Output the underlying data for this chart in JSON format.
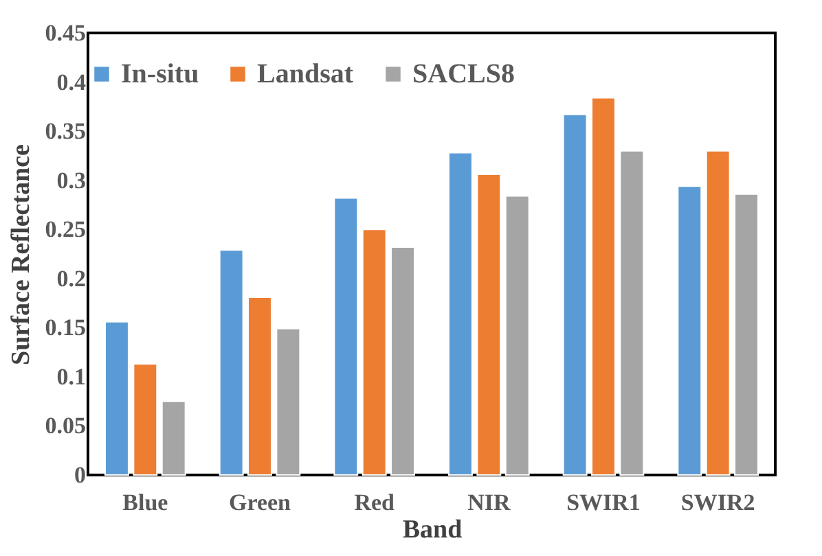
{
  "chart_data": {
    "type": "bar",
    "xlabel": "Band",
    "ylabel": "Surface Reflectance",
    "categories": [
      "Blue",
      "Green",
      "Red",
      "NIR",
      "SWIR1",
      "SWIR2"
    ],
    "series": [
      {
        "name": "In-situ",
        "color": "#5b9bd5",
        "values": [
          0.156,
          0.229,
          0.282,
          0.328,
          0.367,
          0.294
        ]
      },
      {
        "name": "Landsat",
        "color": "#ed7d31",
        "values": [
          0.113,
          0.181,
          0.25,
          0.306,
          0.384,
          0.33
        ]
      },
      {
        "name": "SACLS8",
        "color": "#a5a5a5",
        "values": [
          0.075,
          0.149,
          0.232,
          0.284,
          0.33,
          0.286
        ]
      }
    ],
    "ylim": [
      0,
      0.45
    ],
    "yticks": [
      0,
      0.05,
      0.1,
      0.15,
      0.2,
      0.25,
      0.3,
      0.35,
      0.4,
      0.45
    ],
    "grid": false,
    "legend": "top"
  }
}
